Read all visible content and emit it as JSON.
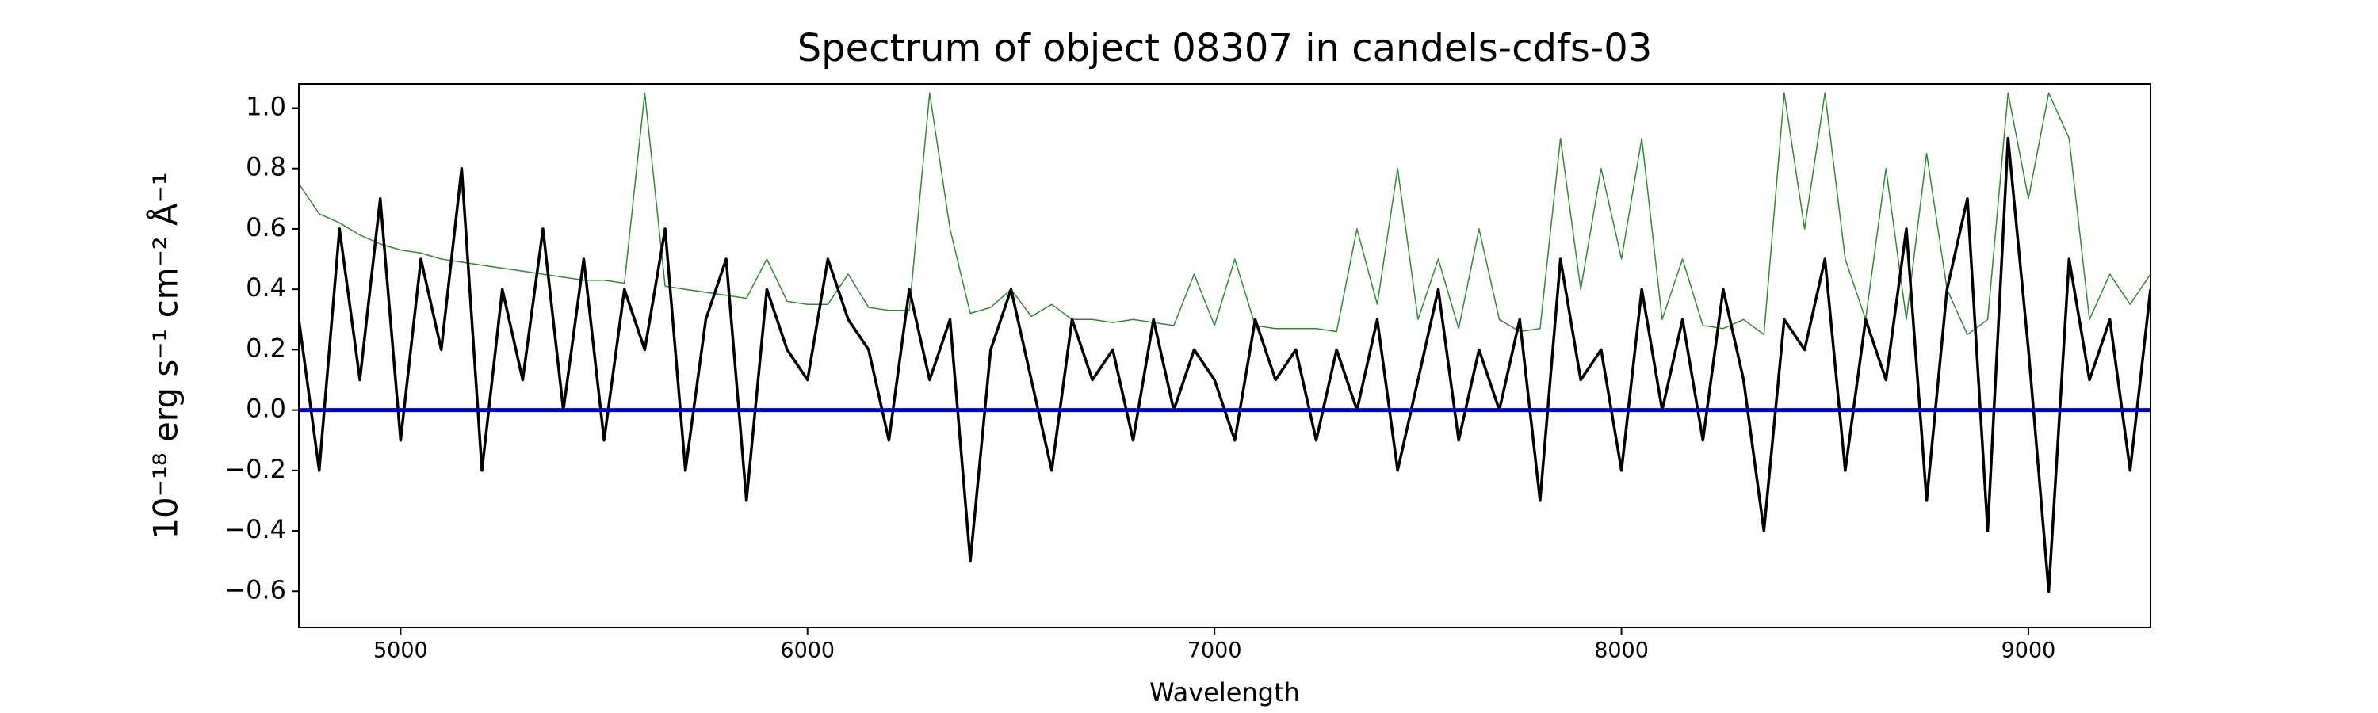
{
  "chart_data": {
    "type": "line",
    "title": "Spectrum of object 08307 in candels-cdfs-03",
    "x_label": "Wavelength",
    "y_label": "10⁻¹⁸ erg s⁻¹ cm⁻² Å⁻¹",
    "xlim": [
      4750,
      9300
    ],
    "xticks": [
      5000,
      6000,
      7000,
      8000,
      9000
    ],
    "ylim": [
      -0.72,
      1.08
    ],
    "yticks": [
      {
        "value": -0.6,
        "label": "−0.6"
      },
      {
        "value": -0.4,
        "label": "−0.4"
      },
      {
        "value": -0.2,
        "label": "−0.2"
      },
      {
        "value": 0,
        "label": "0.0"
      },
      {
        "value": 0.2,
        "label": "0.2"
      },
      {
        "value": 0.4,
        "label": "0.4"
      },
      {
        "value": 0.6,
        "label": "0.6"
      },
      {
        "value": 0.8,
        "label": "0.8"
      },
      {
        "value": 1,
        "label": "1.0"
      }
    ],
    "x": [
      4750,
      4800,
      4850,
      4900,
      4950,
      5000,
      5050,
      5100,
      5150,
      5200,
      5250,
      5300,
      5350,
      5400,
      5450,
      5500,
      5550,
      5600,
      5650,
      5700,
      5750,
      5800,
      5850,
      5900,
      5950,
      6000,
      6050,
      6100,
      6150,
      6200,
      6250,
      6300,
      6350,
      6400,
      6450,
      6500,
      6550,
      6600,
      6650,
      6700,
      6750,
      6800,
      6850,
      6900,
      6950,
      7000,
      7050,
      7100,
      7150,
      7200,
      7250,
      7300,
      7350,
      7400,
      7450,
      7500,
      7550,
      7600,
      7650,
      7700,
      7750,
      7800,
      7850,
      7900,
      7950,
      8000,
      8050,
      8100,
      8150,
      8200,
      8250,
      8300,
      8350,
      8400,
      8450,
      8500,
      8550,
      8600,
      8650,
      8700,
      8750,
      8800,
      8850,
      8900,
      8950,
      9000,
      9050,
      9100,
      9150,
      9200,
      9250,
      9300
    ],
    "series": [
      {
        "color": "#2e8b2e",
        "width": 1.5,
        "values": [
          0.75,
          0.65,
          0.62,
          0.58,
          0.55,
          0.53,
          0.52,
          0.5,
          0.49,
          0.48,
          0.47,
          0.46,
          0.45,
          0.44,
          0.43,
          0.43,
          0.42,
          1.05,
          0.41,
          0.4,
          0.39,
          0.38,
          0.37,
          0.5,
          0.36,
          0.35,
          0.35,
          0.45,
          0.34,
          0.33,
          0.33,
          1.05,
          0.6,
          0.32,
          0.34,
          0.4,
          0.31,
          0.35,
          0.3,
          0.3,
          0.29,
          0.3,
          0.29,
          0.28,
          0.45,
          0.28,
          0.5,
          0.28,
          0.27,
          0.27,
          0.27,
          0.26,
          0.6,
          0.35,
          0.8,
          0.3,
          0.5,
          0.27,
          0.6,
          0.3,
          0.26,
          0.27,
          0.9,
          0.4,
          0.8,
          0.5,
          0.9,
          0.3,
          0.5,
          0.28,
          0.27,
          0.3,
          0.25,
          1.05,
          0.6,
          1.05,
          0.5,
          0.3,
          0.8,
          0.3,
          0.85,
          0.4,
          0.25,
          0.3,
          1.05,
          0.7,
          1.05,
          0.9,
          0.3,
          0.45,
          0.35,
          0.45
        ]
      },
      {
        "color": "#000000",
        "width": 3.5,
        "values": [
          0.3,
          -0.2,
          0.6,
          0.1,
          0.7,
          -0.1,
          0.5,
          0.2,
          0.8,
          -0.2,
          0.4,
          0.1,
          0.6,
          0.0,
          0.5,
          -0.1,
          0.4,
          0.2,
          0.6,
          -0.2,
          0.3,
          0.5,
          -0.3,
          0.4,
          0.2,
          0.1,
          0.5,
          0.3,
          0.2,
          -0.1,
          0.4,
          0.1,
          0.3,
          -0.5,
          0.2,
          0.4,
          0.1,
          -0.2,
          0.3,
          0.1,
          0.2,
          -0.1,
          0.3,
          0.0,
          0.2,
          0.1,
          -0.1,
          0.3,
          0.1,
          0.2,
          -0.1,
          0.2,
          0.0,
          0.3,
          -0.2,
          0.1,
          0.4,
          -0.1,
          0.2,
          0.0,
          0.3,
          -0.3,
          0.5,
          0.1,
          0.2,
          -0.2,
          0.4,
          0.0,
          0.3,
          -0.1,
          0.4,
          0.1,
          -0.4,
          0.3,
          0.2,
          0.5,
          -0.2,
          0.3,
          0.1,
          0.6,
          -0.3,
          0.4,
          0.7,
          -0.4,
          0.9,
          0.2,
          -0.6,
          0.5,
          0.1,
          0.3,
          -0.2,
          0.4
        ]
      },
      {
        "color": "#0000cc",
        "width": 5,
        "x": [
          4750,
          9300
        ],
        "values": [
          0,
          0
        ]
      }
    ]
  }
}
